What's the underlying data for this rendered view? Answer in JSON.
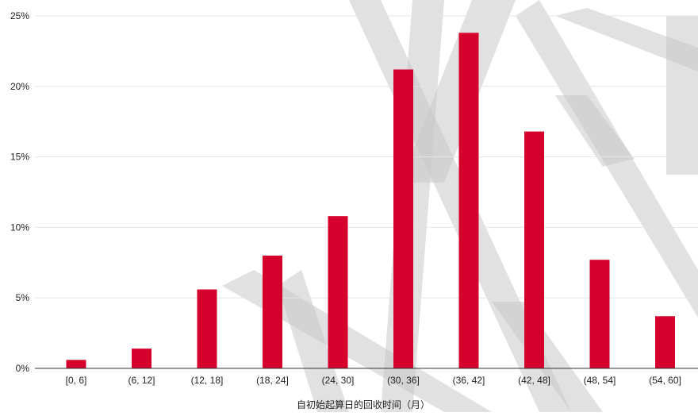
{
  "chart_data": {
    "type": "bar",
    "categories": [
      "[0, 6]",
      "(6, 12]",
      "(12, 18]",
      "(18, 24]",
      "(24, 30]",
      "(30, 36]",
      "(36, 42]",
      "(42, 48]",
      "(48, 54]",
      "(54, 60]"
    ],
    "series": [
      {
        "values": [
          0.6,
          1.4,
          5.6,
          8.0,
          10.8,
          21.2,
          23.8,
          16.8,
          7.7,
          3.7
        ],
        "color": "#d6002c"
      }
    ],
    "xlabel": "自初始起算日的回收时间（月）",
    "ylabel": "",
    "ylim": [
      0,
      25
    ],
    "yticks": [
      "0%",
      "5%",
      "10%",
      "15%",
      "20%",
      "25%"
    ],
    "grid": true,
    "gridColor": "#e5e5e5",
    "axisColor": "#333333",
    "watermark": true,
    "watermarkColor": "#c8c8c8"
  }
}
